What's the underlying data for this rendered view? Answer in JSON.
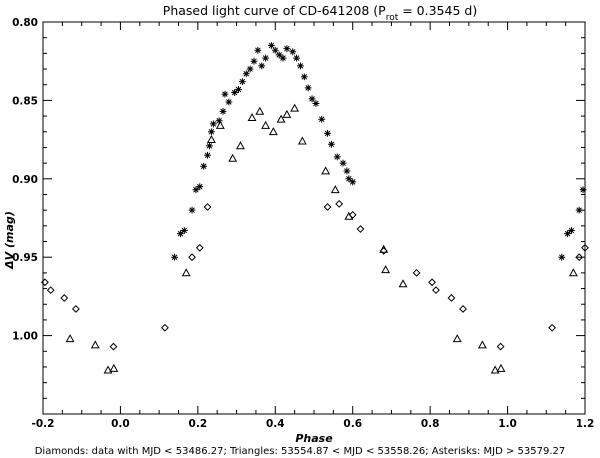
{
  "chart_data": {
    "type": "scatter",
    "title": {
      "prefix": "Phased light curve of CD-641208 (P",
      "sub": "rot",
      "suffix": " = 0.3545 d)"
    },
    "xlabel": "Phase",
    "ylabel": "ΔV (mag)",
    "xlim": [
      -0.2,
      1.2
    ],
    "ylim": [
      1.05,
      0.8
    ],
    "y_inverted": true,
    "grid": false,
    "xticks": [
      -0.2,
      0.0,
      0.2,
      0.4,
      0.6,
      0.8,
      1.0,
      1.2
    ],
    "xtick_labels": [
      "-0.2",
      "0.0",
      "0.2",
      "0.4",
      "0.6",
      "0.8",
      "1.0",
      "1.2"
    ],
    "yticks": [
      0.8,
      0.85,
      0.9,
      0.95,
      1.0
    ],
    "ytick_labels": [
      "0.80",
      "0.85",
      "0.90",
      "0.95",
      "1.00"
    ],
    "caption": "Diamonds: data with MJD < 53486.27; Triangles:  53554.87 < MJD < 53558.26; Asterisks: MJD > 53579.27",
    "series": [
      {
        "marker": "diamond",
        "points": [
          [
            -0.195,
            0.966
          ],
          [
            -0.18,
            0.971
          ],
          [
            -0.145,
            0.976
          ],
          [
            -0.115,
            0.983
          ],
          [
            -0.018,
            1.007
          ],
          [
            0.115,
            0.995
          ],
          [
            0.185,
            0.95
          ],
          [
            0.205,
            0.944
          ],
          [
            0.225,
            0.918
          ],
          [
            0.535,
            0.918
          ],
          [
            0.565,
            0.916
          ],
          [
            0.6,
            0.923
          ],
          [
            0.62,
            0.932
          ],
          [
            0.68,
            0.946
          ],
          [
            0.765,
            0.96
          ],
          [
            0.805,
            0.966
          ],
          [
            0.815,
            0.971
          ],
          [
            0.855,
            0.976
          ],
          [
            0.885,
            0.983
          ],
          [
            0.982,
            1.007
          ],
          [
            1.115,
            0.995
          ],
          [
            1.185,
            0.95
          ],
          [
            1.2,
            0.944
          ]
        ]
      },
      {
        "marker": "triangle",
        "points": [
          [
            -0.13,
            1.002
          ],
          [
            -0.065,
            1.006
          ],
          [
            -0.032,
            1.022
          ],
          [
            -0.017,
            1.021
          ],
          [
            0.17,
            0.96
          ],
          [
            0.235,
            0.875
          ],
          [
            0.258,
            0.866
          ],
          [
            0.29,
            0.887
          ],
          [
            0.31,
            0.879
          ],
          [
            0.34,
            0.861
          ],
          [
            0.36,
            0.857
          ],
          [
            0.375,
            0.866
          ],
          [
            0.395,
            0.87
          ],
          [
            0.415,
            0.862
          ],
          [
            0.43,
            0.859
          ],
          [
            0.45,
            0.855
          ],
          [
            0.47,
            0.876
          ],
          [
            0.53,
            0.895
          ],
          [
            0.555,
            0.907
          ],
          [
            0.59,
            0.924
          ],
          [
            0.68,
            0.945
          ],
          [
            0.685,
            0.958
          ],
          [
            0.73,
            0.967
          ],
          [
            0.87,
            1.002
          ],
          [
            0.935,
            1.006
          ],
          [
            0.968,
            1.022
          ],
          [
            0.983,
            1.021
          ],
          [
            1.17,
            0.96
          ]
        ]
      },
      {
        "marker": "asterisk",
        "points": [
          [
            0.14,
            0.95
          ],
          [
            0.155,
            0.935
          ],
          [
            0.165,
            0.933
          ],
          [
            0.185,
            0.92
          ],
          [
            0.195,
            0.907
          ],
          [
            0.205,
            0.905
          ],
          [
            0.215,
            0.892
          ],
          [
            0.225,
            0.885
          ],
          [
            0.23,
            0.879
          ],
          [
            0.235,
            0.87
          ],
          [
            0.24,
            0.865
          ],
          [
            0.255,
            0.863
          ],
          [
            0.265,
            0.857
          ],
          [
            0.27,
            0.846
          ],
          [
            0.28,
            0.851
          ],
          [
            0.295,
            0.845
          ],
          [
            0.305,
            0.843
          ],
          [
            0.315,
            0.838
          ],
          [
            0.325,
            0.833
          ],
          [
            0.335,
            0.83
          ],
          [
            0.345,
            0.825
          ],
          [
            0.355,
            0.818
          ],
          [
            0.365,
            0.828
          ],
          [
            0.375,
            0.823
          ],
          [
            0.39,
            0.815
          ],
          [
            0.4,
            0.818
          ],
          [
            0.41,
            0.821
          ],
          [
            0.42,
            0.823
          ],
          [
            0.43,
            0.817
          ],
          [
            0.445,
            0.819
          ],
          [
            0.455,
            0.823
          ],
          [
            0.465,
            0.828
          ],
          [
            0.475,
            0.835
          ],
          [
            0.485,
            0.842
          ],
          [
            0.495,
            0.849
          ],
          [
            0.505,
            0.852
          ],
          [
            0.52,
            0.862
          ],
          [
            0.535,
            0.871
          ],
          [
            0.545,
            0.878
          ],
          [
            0.56,
            0.886
          ],
          [
            0.575,
            0.89
          ],
          [
            0.585,
            0.895
          ],
          [
            0.59,
            0.9
          ],
          [
            0.6,
            0.902
          ],
          [
            1.14,
            0.95
          ],
          [
            1.155,
            0.935
          ],
          [
            1.165,
            0.933
          ],
          [
            1.185,
            0.92
          ],
          [
            1.195,
            0.907
          ]
        ]
      }
    ]
  }
}
